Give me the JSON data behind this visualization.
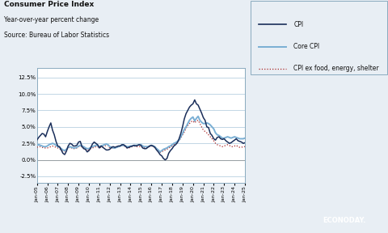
{
  "title_line1": "Consumer Price Index",
  "title_line2": "Year-over-year percent change",
  "title_line3": "Source: Bureau of Labor Statistics",
  "background_color": "#e8eef4",
  "plot_bg_color": "#ffffff",
  "border_color": "#8aaabf",
  "grid_color": "#b8d0e0",
  "cpi_color": "#1a2e5a",
  "core_cpi_color": "#7aafd4",
  "ex_color": "#aa2222",
  "watermark_bg": "#222222",
  "watermark_text": "ECONODAY.",
  "watermark_text_color": "#ffffff",
  "ylim": [
    -3.5,
    14.0
  ],
  "yticks": [
    -2.5,
    0.0,
    2.5,
    5.0,
    7.5,
    10.0,
    12.5
  ],
  "ytick_labels": [
    "-2.5%",
    "0.0%",
    "2.5%",
    "5.0%",
    "7.5%",
    "10.0%",
    "12.5%"
  ],
  "xtick_labels": [
    "Jan-05",
    "Jan-06",
    "Jan-07",
    "Jan-08",
    "Jan-09",
    "Jan-10",
    "Jan-11",
    "Jan-12",
    "Jan-13",
    "Jan-14",
    "Jan-15",
    "Jan-16",
    "Jan-17",
    "Jan-18",
    "Jan-19",
    "Jan-20",
    "Jan-21",
    "Jan-22",
    "Jan-23",
    "Jan-24",
    "Jan-25"
  ],
  "legend_labels": [
    "CPI",
    "Core CPI",
    "CPI ex food, energy, shelter"
  ],
  "cpi_data": [
    3.0,
    3.4,
    3.7,
    4.0,
    3.9,
    3.5,
    4.3,
    5.0,
    5.6,
    4.5,
    3.8,
    2.8,
    2.1,
    2.0,
    1.5,
    1.0,
    0.8,
    1.3,
    2.1,
    2.5,
    2.4,
    2.1,
    2.1,
    2.2,
    2.7,
    2.8,
    2.0,
    1.7,
    1.6,
    1.2,
    1.4,
    1.8,
    2.4,
    2.7,
    2.5,
    2.3,
    1.8,
    2.1,
    1.9,
    1.7,
    1.5,
    1.5,
    1.6,
    1.9,
    2.0,
    1.9,
    2.0,
    2.1,
    2.1,
    2.3,
    2.3,
    2.1,
    1.8,
    1.9,
    2.0,
    2.1,
    2.2,
    2.1,
    2.2,
    2.3,
    2.2,
    1.8,
    1.7,
    1.7,
    1.9,
    2.1,
    2.2,
    2.1,
    1.9,
    1.5,
    1.2,
    0.8,
    0.6,
    0.2,
    0.0,
    0.2,
    1.0,
    1.4,
    1.7,
    2.1,
    2.3,
    2.6,
    3.2,
    4.0,
    5.0,
    6.2,
    7.0,
    7.5,
    8.0,
    8.3,
    8.5,
    9.1,
    8.5,
    8.3,
    7.7,
    7.1,
    6.4,
    6.0,
    5.0,
    4.9,
    4.0,
    3.7,
    3.2,
    3.0,
    3.4,
    3.5,
    3.2,
    3.1,
    3.2,
    2.9,
    2.7,
    2.5,
    2.6,
    2.8,
    3.0,
    3.2,
    2.9,
    2.8,
    2.7,
    2.5,
    2.6
  ],
  "core_cpi_data": [
    2.2,
    2.3,
    2.2,
    2.1,
    2.0,
    2.0,
    2.1,
    2.3,
    2.4,
    2.5,
    2.4,
    2.2,
    2.0,
    1.9,
    1.7,
    1.5,
    1.4,
    1.6,
    1.9,
    2.0,
    1.9,
    1.8,
    1.8,
    1.9,
    2.1,
    2.2,
    2.1,
    2.0,
    1.8,
    1.7,
    1.7,
    1.9,
    2.0,
    2.1,
    2.2,
    2.2,
    2.0,
    2.1,
    2.2,
    2.3,
    2.4,
    2.3,
    2.0,
    1.9,
    1.8,
    1.8,
    1.9,
    2.0,
    2.1,
    2.2,
    2.2,
    2.1,
    2.0,
    2.0,
    2.1,
    2.1,
    2.2,
    2.2,
    2.2,
    2.3,
    2.3,
    2.1,
    2.0,
    2.0,
    2.0,
    2.1,
    2.2,
    2.1,
    2.0,
    1.7,
    1.5,
    1.2,
    1.4,
    1.6,
    1.7,
    1.8,
    2.0,
    2.1,
    2.3,
    2.5,
    2.6,
    2.8,
    3.0,
    3.5,
    4.0,
    4.6,
    5.0,
    5.5,
    6.0,
    6.3,
    6.5,
    5.9,
    6.3,
    6.6,
    6.0,
    5.7,
    5.5,
    5.5,
    5.6,
    5.5,
    5.3,
    5.0,
    4.7,
    4.1,
    3.8,
    3.7,
    3.5,
    3.3,
    3.3,
    3.4,
    3.5,
    3.4,
    3.3,
    3.4,
    3.5,
    3.4,
    3.3,
    3.2,
    3.2,
    3.2,
    3.3
  ],
  "ex_data": [
    1.9,
    2.0,
    2.0,
    1.9,
    1.8,
    1.8,
    1.8,
    1.9,
    2.0,
    2.1,
    2.0,
    1.9,
    1.8,
    1.7,
    1.5,
    1.4,
    1.3,
    1.5,
    1.8,
    1.9,
    1.8,
    1.7,
    1.7,
    1.8,
    2.0,
    2.1,
    2.0,
    1.8,
    1.6,
    1.5,
    1.5,
    1.7,
    1.8,
    1.9,
    2.0,
    2.0,
    1.8,
    1.9,
    2.0,
    2.1,
    2.2,
    2.2,
    1.8,
    1.8,
    1.8,
    1.8,
    1.9,
    2.0,
    2.1,
    2.2,
    2.1,
    2.0,
    1.8,
    1.8,
    1.9,
    2.0,
    2.1,
    2.0,
    2.0,
    2.0,
    2.1,
    1.9,
    1.8,
    1.8,
    1.9,
    2.0,
    2.1,
    2.0,
    1.9,
    1.7,
    1.4,
    1.1,
    1.2,
    1.4,
    1.5,
    1.6,
    1.8,
    1.9,
    2.1,
    2.3,
    2.5,
    2.7,
    2.9,
    3.3,
    3.8,
    4.2,
    4.8,
    5.2,
    5.5,
    5.8,
    5.9,
    5.6,
    5.9,
    6.0,
    5.5,
    5.0,
    4.5,
    4.3,
    4.1,
    3.8,
    3.5,
    3.2,
    2.9,
    2.5,
    2.3,
    2.2,
    2.1,
    2.0,
    2.1,
    2.2,
    2.3,
    2.2,
    2.0,
    2.0,
    2.1,
    2.2,
    2.0,
    1.9,
    1.9,
    2.0,
    2.0
  ]
}
